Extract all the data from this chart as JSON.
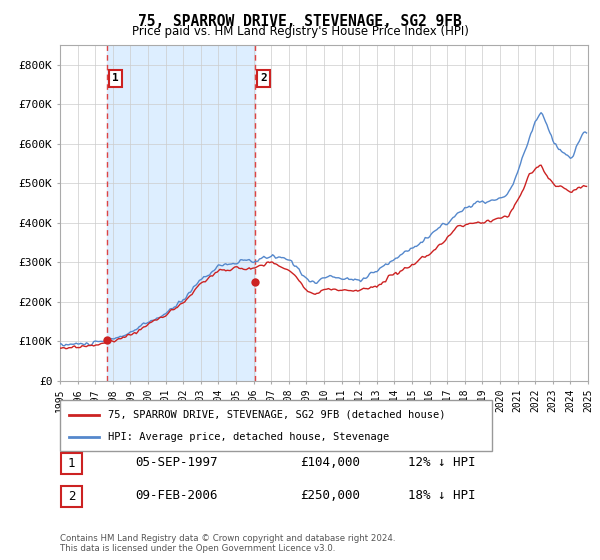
{
  "title": "75, SPARROW DRIVE, STEVENAGE, SG2 9FB",
  "subtitle": "Price paid vs. HM Land Registry's House Price Index (HPI)",
  "hpi_color": "#5588cc",
  "price_color": "#cc2222",
  "marker_color": "#cc2222",
  "vline_color": "#dd4444",
  "shade_color": "#ddeeff",
  "ylim": [
    0,
    850000
  ],
  "yticks": [
    0,
    100000,
    200000,
    300000,
    400000,
    500000,
    600000,
    700000,
    800000
  ],
  "ytick_labels": [
    "£0",
    "£100K",
    "£200K",
    "£300K",
    "£400K",
    "£500K",
    "£600K",
    "£700K",
    "£800K"
  ],
  "legend_label_price": "75, SPARROW DRIVE, STEVENAGE, SG2 9FB (detached house)",
  "legend_label_hpi": "HPI: Average price, detached house, Stevenage",
  "sale1_date": "05-SEP-1997",
  "sale1_price": "£104,000",
  "sale1_hpi": "12% ↓ HPI",
  "sale2_date": "09-FEB-2006",
  "sale2_price": "£250,000",
  "sale2_hpi": "18% ↓ HPI",
  "footnote": "Contains HM Land Registry data © Crown copyright and database right 2024.\nThis data is licensed under the Open Government Licence v3.0.",
  "sale1_x": 1997.67,
  "sale1_y": 104000,
  "sale2_x": 2006.08,
  "sale2_y": 250000,
  "xmin": 1995,
  "xmax": 2025
}
